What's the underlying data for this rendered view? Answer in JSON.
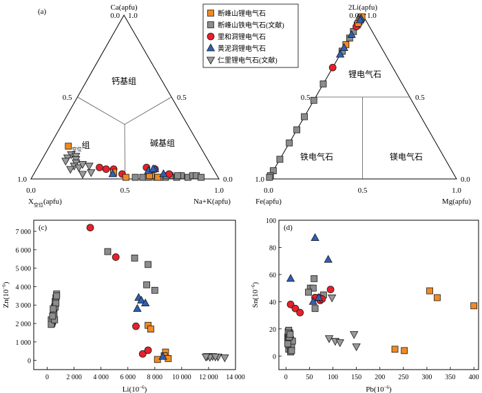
{
  "legend": [
    {
      "key": "orange_sq",
      "label": "断峰山锂电气石",
      "marker": "square",
      "color": "#f08a24"
    },
    {
      "key": "gray_sq",
      "label": "断峰山铁电气石(文献)",
      "marker": "square",
      "color": "#8c8c8c"
    },
    {
      "key": "red_ci",
      "label": "里和洞锂电气石",
      "marker": "circle",
      "color": "#e8202a"
    },
    {
      "key": "blue_tri",
      "label": "黄泥洞锂电气石",
      "marker": "triangle",
      "color": "#2f5fb3"
    },
    {
      "key": "gray_dtri",
      "label": "仁里锂电气石(文献)",
      "marker": "down-triangle",
      "color": "#9a9a9a"
    }
  ],
  "chart_data": [
    {
      "panel": "(a)",
      "type": "scatter",
      "subtype": "ternary",
      "vertex_labels": {
        "top": "Ca(apfu)",
        "left_sub": "空位",
        "bottom_left": "X空位(apfu)",
        "bottom_right": "Na+K(apfu)"
      },
      "ticks": {
        "top": [
          "0.0",
          "1.0"
        ],
        "left": [
          "0.5",
          "1.0"
        ],
        "right": [
          "0.5",
          "0.0"
        ],
        "bottom": [
          "0.0",
          "0.5",
          "1.0"
        ]
      },
      "fields": {
        "ca": "钙基组",
        "vac_pre": "X",
        "vac_sub": "空位",
        "vac_post": "组",
        "alk": "碱基组"
      },
      "xlabel_pre": "X",
      "xlabel_sub": "空位",
      "xlabel_post": "(apfu)",
      "series": {
        "orange_sq": [
          [
            0.2,
            0.7,
            0.1
          ],
          [
            0.04,
            0.54,
            0.42
          ],
          [
            0.01,
            0.49,
            0.5
          ],
          [
            0.02,
            0.35,
            0.63
          ],
          [
            0.02,
            0.36,
            0.62
          ],
          [
            0.01,
            0.32,
            0.67
          ]
        ],
        "gray_sq": [
          [
            0.01,
            0.4,
            0.59
          ],
          [
            0.01,
            0.37,
            0.62
          ],
          [
            0.01,
            0.33,
            0.66
          ],
          [
            0.01,
            0.28,
            0.71
          ],
          [
            0.02,
            0.25,
            0.73
          ],
          [
            0.01,
            0.22,
            0.77
          ],
          [
            0.02,
            0.19,
            0.79
          ],
          [
            0.01,
            0.16,
            0.83
          ],
          [
            0.02,
            0.13,
            0.85
          ],
          [
            0.02,
            0.11,
            0.87
          ],
          [
            0.01,
            0.09,
            0.9
          ],
          [
            0.02,
            0.27,
            0.71
          ],
          [
            0.01,
            0.31,
            0.68
          ],
          [
            0.02,
            0.21,
            0.77
          ],
          [
            0.01,
            0.44,
            0.55
          ]
        ],
        "red_ci": [
          [
            0.07,
            0.6,
            0.33
          ],
          [
            0.06,
            0.57,
            0.37
          ],
          [
            0.06,
            0.53,
            0.41
          ],
          [
            0.03,
            0.5,
            0.47
          ],
          [
            0.07,
            0.35,
            0.58
          ],
          [
            0.06,
            0.31,
            0.63
          ],
          [
            0.03,
            0.25,
            0.72
          ]
        ],
        "blue_tri": [
          [
            0.03,
            0.55,
            0.42
          ],
          [
            0.05,
            0.35,
            0.6
          ],
          [
            0.06,
            0.31,
            0.63
          ],
          [
            0.03,
            0.28,
            0.69
          ],
          [
            0.06,
            0.32,
            0.62
          ]
        ],
        "gray_dtri": [
          [
            0.15,
            0.71,
            0.14
          ],
          [
            0.14,
            0.69,
            0.17
          ],
          [
            0.12,
            0.7,
            0.18
          ],
          [
            0.1,
            0.71,
            0.19
          ],
          [
            0.08,
            0.73,
            0.19
          ],
          [
            0.07,
            0.71,
            0.22
          ],
          [
            0.09,
            0.68,
            0.23
          ],
          [
            0.06,
            0.76,
            0.18
          ],
          [
            0.03,
            0.71,
            0.26
          ],
          [
            0.13,
            0.74,
            0.13
          ],
          [
            0.11,
            0.76,
            0.13
          ],
          [
            0.04,
            0.66,
            0.3
          ],
          [
            0.08,
            0.65,
            0.27
          ]
        ]
      }
    },
    {
      "panel": "(b)",
      "type": "scatter",
      "subtype": "ternary",
      "vertex_labels": {
        "top": "2Li(apfu)",
        "bottom_left": "Fe(apfu)",
        "bottom_right": "Mg(apfu)"
      },
      "ticks": {
        "top": [
          "0.0",
          "1.0"
        ],
        "left": [
          "0.5",
          "1.0"
        ],
        "right": [
          "0.5",
          "0.0"
        ],
        "bottom": [
          "0.0",
          "0.5",
          "1.0"
        ]
      },
      "fields": {
        "li": "锂电气石",
        "fe": "铁电气石",
        "mg": "镁电气石"
      },
      "series": {
        "orange_sq": [
          [
            0.97,
            0.03,
            0.0
          ],
          [
            0.96,
            0.04,
            0.0
          ],
          [
            0.95,
            0.05,
            0.0
          ],
          [
            0.82,
            0.18,
            0.0
          ],
          [
            0.99,
            0.01,
            0.0
          ]
        ],
        "gray_sq": [
          [
            0.98,
            0.02,
            0.0
          ],
          [
            0.94,
            0.06,
            0.0
          ],
          [
            0.9,
            0.1,
            0.0
          ],
          [
            0.86,
            0.14,
            0.0
          ],
          [
            0.78,
            0.22,
            0.0
          ],
          [
            0.58,
            0.42,
            0.0
          ],
          [
            0.48,
            0.52,
            0.0
          ],
          [
            0.38,
            0.62,
            0.0
          ],
          [
            0.3,
            0.7,
            0.0
          ],
          [
            0.22,
            0.78,
            0.0
          ],
          [
            0.12,
            0.88,
            0.0
          ],
          [
            0.05,
            0.95,
            0.0
          ],
          [
            0.02,
            0.98,
            0.0
          ],
          [
            0.01,
            0.99,
            0.0
          ],
          [
            0.78,
            0.22,
            0.0
          ]
        ],
        "red_ci": [
          [
            0.93,
            0.07,
            0.0
          ],
          [
            0.68,
            0.32,
            0.0
          ]
        ],
        "blue_tri": [
          [
            0.98,
            0.02,
            0.0
          ],
          [
            0.88,
            0.12,
            0.0
          ],
          [
            0.8,
            0.2,
            0.0
          ],
          [
            0.76,
            0.24,
            0.0
          ],
          [
            0.97,
            0.03,
            0.0
          ]
        ],
        "gray_dtri": [
          [
            0.99,
            0.01,
            0.0
          ],
          [
            0.98,
            0.02,
            0.0
          ]
        ]
      }
    },
    {
      "panel": "(c)",
      "type": "scatter",
      "xlabel_pre": "Li(10",
      "xlabel_sup": "−6",
      "xlabel_post": ")",
      "ylabel_pre": "Zn(10",
      "ylabel_sup": "−6",
      "ylabel_post": ")",
      "xlim": [
        -1000,
        14000
      ],
      "ylim": [
        -500,
        7600
      ],
      "xticks": [
        0,
        2000,
        4000,
        6000,
        8000,
        10000,
        12000,
        14000
      ],
      "xtick_labels": [
        "0",
        "2 000",
        "4 000",
        "6 000",
        "8 000",
        "10 000",
        "12 000",
        "14 000"
      ],
      "yticks": [
        0,
        1000,
        2000,
        3000,
        4000,
        5000,
        6000,
        7000
      ],
      "ytick_labels": [
        "0",
        "1 000",
        "2 000",
        "3 000",
        "4 000",
        "5 000",
        "6 000",
        "7 000"
      ],
      "series": {
        "orange_sq": [
          [
            7500,
            1900
          ],
          [
            7700,
            1700
          ],
          [
            8800,
            450
          ],
          [
            8200,
            50
          ],
          [
            8700,
            250
          ],
          [
            9000,
            100
          ]
        ],
        "gray_sq": [
          [
            400,
            2100
          ],
          [
            450,
            2300
          ],
          [
            500,
            2600
          ],
          [
            550,
            2900
          ],
          [
            600,
            3200
          ],
          [
            650,
            3400
          ],
          [
            700,
            3600
          ],
          [
            350,
            2000
          ],
          [
            300,
            2200
          ],
          [
            450,
            2700
          ],
          [
            500,
            2500
          ],
          [
            600,
            2900
          ],
          [
            300,
            1950
          ],
          [
            550,
            2200
          ],
          [
            650,
            3100
          ],
          [
            700,
            3500
          ],
          [
            400,
            2400
          ],
          [
            450,
            2800
          ],
          [
            4500,
            5900
          ],
          [
            6500,
            5550
          ],
          [
            7500,
            5200
          ],
          [
            7400,
            4100
          ],
          [
            8000,
            3800
          ]
        ],
        "red_ci": [
          [
            3200,
            7200
          ],
          [
            5100,
            5600
          ],
          [
            6600,
            1850
          ],
          [
            7100,
            350
          ],
          [
            7500,
            550
          ]
        ],
        "blue_tri": [
          [
            6800,
            3400
          ],
          [
            7000,
            3250
          ],
          [
            7300,
            3100
          ],
          [
            6700,
            2800
          ],
          [
            8600,
            200
          ]
        ],
        "gray_dtri": [
          [
            11900,
            220
          ],
          [
            12300,
            220
          ],
          [
            12700,
            200
          ],
          [
            13200,
            150
          ],
          [
            12100,
            180
          ],
          [
            12500,
            200
          ],
          [
            11800,
            200
          ]
        ]
      }
    },
    {
      "panel": "(d)",
      "type": "scatter",
      "xlabel_pre": "Pb(10",
      "xlabel_sup": "−6",
      "xlabel_post": ")",
      "ylabel_pre": "Sn(10",
      "ylabel_sup": "−6",
      "ylabel_post": ")",
      "xlim": [
        -15,
        410
      ],
      "ylim": [
        -10,
        100
      ],
      "xticks": [
        0,
        50,
        100,
        150,
        200,
        250,
        300,
        350,
        400
      ],
      "yticks": [
        0,
        20,
        40,
        60,
        80,
        100
      ],
      "series": {
        "orange_sq": [
          [
            232,
            5
          ],
          [
            252,
            4
          ],
          [
            306,
            48
          ],
          [
            322,
            43
          ],
          [
            400,
            37
          ]
        ],
        "gray_sq": [
          [
            5,
            18
          ],
          [
            6,
            16
          ],
          [
            4,
            14
          ],
          [
            6,
            12
          ],
          [
            5,
            11
          ],
          [
            7,
            10
          ],
          [
            8,
            7
          ],
          [
            6,
            5
          ],
          [
            8,
            8
          ],
          [
            9,
            10
          ],
          [
            10,
            12
          ],
          [
            5,
            13
          ],
          [
            7,
            15
          ],
          [
            8,
            17
          ],
          [
            6,
            19
          ],
          [
            9,
            9
          ],
          [
            10,
            3
          ],
          [
            12,
            7
          ],
          [
            14,
            11
          ],
          [
            4,
            9
          ],
          [
            52,
            50
          ],
          [
            60,
            57
          ],
          [
            58,
            50
          ],
          [
            48,
            47
          ],
          [
            62,
            35
          ],
          [
            80,
            45
          ],
          [
            5,
            17
          ],
          [
            7,
            14
          ],
          [
            9,
            16
          ],
          [
            12,
            4
          ]
        ],
        "red_ci": [
          [
            10,
            38
          ],
          [
            20,
            35
          ],
          [
            30,
            32
          ],
          [
            70,
            43
          ],
          [
            73,
            41
          ],
          [
            77,
            42
          ],
          [
            95,
            49
          ],
          [
            62,
            43
          ]
        ],
        "blue_tri": [
          [
            62,
            87
          ],
          [
            90,
            71
          ],
          [
            10,
            57
          ],
          [
            58,
            40
          ],
          [
            70,
            43
          ]
        ],
        "gray_dtri": [
          [
            98,
            43
          ],
          [
            105,
            11
          ],
          [
            115,
            10
          ],
          [
            92,
            13
          ],
          [
            145,
            16
          ],
          [
            150,
            7
          ]
        ]
      }
    }
  ]
}
